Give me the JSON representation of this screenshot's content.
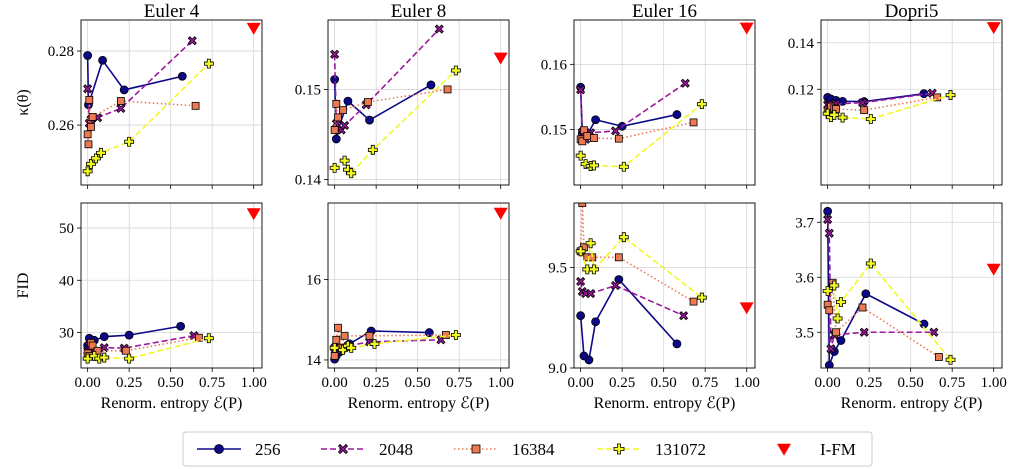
{
  "figure": {
    "columns": [
      "Euler 4",
      "Euler 8",
      "Euler 16",
      "Dopri5"
    ],
    "row_labels": [
      "κ(θ)",
      "FID"
    ],
    "xlabel": "Renorm. entropy ℰ(P)",
    "legend": [
      {
        "label": "256",
        "color": "#0d0887",
        "marker": "circle",
        "line": "solid"
      },
      {
        "label": "2048",
        "color": "#9c179e",
        "marker": "x",
        "line": "dashed"
      },
      {
        "label": "16384",
        "color": "#ed7953",
        "marker": "square",
        "line": "dotted"
      },
      {
        "label": "131072",
        "color": "#f0f921",
        "marker": "plus",
        "line": "dashed"
      },
      {
        "label": "I-FM",
        "color": "#ff0000",
        "marker": "triangle-down",
        "line": "none"
      }
    ]
  },
  "chart_data": [
    {
      "type": "line",
      "title": "Euler 4",
      "ylabel": "κ(θ)",
      "xlabel": "Renorm. entropy ℰ(P)",
      "xlim": [
        -0.04,
        1.05
      ],
      "ylim": [
        0.2438,
        0.2884
      ],
      "yticks": [
        0.26,
        0.28
      ],
      "xticks": [
        0.0,
        0.25,
        0.5,
        0.75,
        1.0
      ],
      "series": [
        {
          "name": "256",
          "x": [
            0.0,
            0.005,
            0.09,
            0.22,
            0.57
          ],
          "y": [
            0.2788,
            0.2655,
            0.2775,
            0.2695,
            0.2732
          ]
        },
        {
          "name": "2048",
          "x": [
            0.0,
            0.01,
            0.02,
            0.06,
            0.2,
            0.63
          ],
          "y": [
            0.2698,
            0.2605,
            0.2615,
            0.262,
            0.2645,
            0.2828
          ]
        },
        {
          "name": "16384",
          "x": [
            0.0,
            0.005,
            0.01,
            0.02,
            0.03,
            0.2,
            0.65
          ],
          "y": [
            0.2575,
            0.2548,
            0.2668,
            0.2595,
            0.2622,
            0.2665,
            0.2652
          ]
        },
        {
          "name": "131072",
          "x": [
            0.0,
            0.02,
            0.05,
            0.08,
            0.25,
            0.73
          ],
          "y": [
            0.2475,
            0.2495,
            0.251,
            0.2525,
            0.2555,
            0.2766
          ]
        },
        {
          "name": "I-FM",
          "x": [
            1.0
          ],
          "y": [
            0.2862
          ]
        }
      ]
    },
    {
      "type": "line",
      "title": "Euler 8",
      "ylabel": "",
      "xlabel": "Renorm. entropy ℰ(P)",
      "xlim": [
        -0.04,
        1.05
      ],
      "ylim": [
        0.1394,
        0.1577
      ],
      "yticks": [
        0.14,
        0.15
      ],
      "xticks": [
        0.0,
        0.25,
        0.5,
        0.75,
        1.0
      ],
      "series": [
        {
          "name": "256",
          "x": [
            0.0,
            0.01,
            0.02,
            0.08,
            0.21,
            0.58
          ],
          "y": [
            0.1511,
            0.1445,
            0.1455,
            0.1487,
            0.1466,
            0.1505
          ]
        },
        {
          "name": "2048",
          "x": [
            0.0,
            0.01,
            0.04,
            0.06,
            0.19,
            0.63
          ],
          "y": [
            0.1539,
            0.1462,
            0.1455,
            0.146,
            0.1483,
            0.1567
          ]
        },
        {
          "name": "16384",
          "x": [
            0.0,
            0.01,
            0.02,
            0.05,
            0.2,
            0.68
          ],
          "y": [
            0.1455,
            0.1484,
            0.1469,
            0.1477,
            0.1486,
            0.15
          ]
        },
        {
          "name": "131072",
          "x": [
            0.0,
            0.06,
            0.08,
            0.1,
            0.23,
            0.73
          ],
          "y": [
            0.1413,
            0.1421,
            0.1411,
            0.1407,
            0.1433,
            0.1521
          ]
        },
        {
          "name": "I-FM",
          "x": [
            1.0
          ],
          "y": [
            0.1535
          ]
        }
      ]
    },
    {
      "type": "line",
      "title": "Euler 16",
      "ylabel": "",
      "xlabel": "Renorm. entropy ℰ(P)",
      "xlim": [
        -0.04,
        1.05
      ],
      "ylim": [
        0.1415,
        0.1668
      ],
      "yticks": [
        0.15,
        0.16
      ],
      "xticks": [
        0.0,
        0.25,
        0.5,
        0.75,
        1.0
      ],
      "series": [
        {
          "name": "256",
          "x": [
            0.0,
            0.01,
            0.04,
            0.09,
            0.25,
            0.58
          ],
          "y": [
            0.1565,
            0.1495,
            0.1492,
            0.1515,
            0.1505,
            0.1523
          ]
        },
        {
          "name": "2048",
          "x": [
            0.0,
            0.01,
            0.03,
            0.06,
            0.21,
            0.63
          ],
          "y": [
            0.1561,
            0.1496,
            0.1485,
            0.1495,
            0.1498,
            0.1571
          ]
        },
        {
          "name": "16384",
          "x": [
            0.0,
            0.01,
            0.02,
            0.04,
            0.08,
            0.23,
            0.68
          ],
          "y": [
            0.1485,
            0.1482,
            0.1499,
            0.149,
            0.1487,
            0.1486,
            0.1511
          ]
        },
        {
          "name": "131072",
          "x": [
            0.0,
            0.03,
            0.06,
            0.08,
            0.26,
            0.73
          ],
          "y": [
            0.146,
            0.1447,
            0.1444,
            0.1445,
            0.1443,
            0.1539
          ]
        },
        {
          "name": "I-FM",
          "x": [
            1.0
          ],
          "y": [
            0.1656
          ]
        }
      ]
    },
    {
      "type": "line",
      "title": "Dopri5",
      "ylabel": "",
      "xlabel": "Renorm. entropy ℰ(P)",
      "xlim": [
        -0.04,
        1.05
      ],
      "ylim": [
        0.0788,
        0.1498
      ],
      "yticks": [
        0.12,
        0.14
      ],
      "xticks": [
        0.0,
        0.25,
        0.5,
        0.75,
        1.0
      ],
      "series": [
        {
          "name": "256",
          "x": [
            0.0,
            0.02,
            0.05,
            0.09,
            0.22,
            0.58
          ],
          "y": [
            0.1165,
            0.1158,
            0.1152,
            0.1148,
            0.1147,
            0.1181
          ]
        },
        {
          "name": "2048",
          "x": [
            0.0,
            0.01,
            0.03,
            0.05,
            0.21,
            0.63
          ],
          "y": [
            0.1133,
            0.1128,
            0.1135,
            0.1137,
            0.1142,
            0.1183
          ]
        },
        {
          "name": "16384",
          "x": [
            0.0,
            0.01,
            0.02,
            0.04,
            0.05,
            0.22,
            0.66
          ],
          "y": [
            0.1108,
            0.1102,
            0.1125,
            0.1118,
            0.1115,
            0.111,
            0.1165
          ]
        },
        {
          "name": "131072",
          "x": [
            0.0,
            0.02,
            0.04,
            0.09,
            0.26,
            0.74
          ],
          "y": [
            0.1095,
            0.108,
            0.109,
            0.1078,
            0.1072,
            0.1175
          ]
        },
        {
          "name": "I-FM",
          "x": [
            1.0
          ],
          "y": [
            0.1466
          ]
        }
      ]
    },
    {
      "type": "line",
      "title": "",
      "ylabel": "FID",
      "xlabel": "Renorm. entropy ℰ(P)",
      "xlim": [
        -0.04,
        1.05
      ],
      "ylim": [
        23.2,
        54.8
      ],
      "yticks": [
        30,
        40,
        50
      ],
      "xticks": [
        0.0,
        0.25,
        0.5,
        0.75,
        1.0
      ],
      "series": [
        {
          "name": "256",
          "x": [
            0.0,
            0.01,
            0.04,
            0.1,
            0.25,
            0.56
          ],
          "y": [
            27.5,
            28.9,
            28.5,
            29.2,
            29.5,
            31.2
          ]
        },
        {
          "name": "2048",
          "x": [
            0.0,
            0.01,
            0.02,
            0.1,
            0.22,
            0.64
          ],
          "y": [
            26.5,
            27.4,
            26.6,
            27.1,
            27.0,
            29.4
          ]
        },
        {
          "name": "16384",
          "x": [
            0.0,
            0.01,
            0.02,
            0.03,
            0.06,
            0.23,
            0.67
          ],
          "y": [
            26.0,
            25.5,
            28.0,
            27.5,
            26.5,
            26.5,
            29.0
          ]
        },
        {
          "name": "131072",
          "x": [
            0.0,
            0.04,
            0.07,
            0.1,
            0.25,
            0.73
          ],
          "y": [
            25.0,
            25.5,
            25.0,
            25.2,
            25.0,
            28.9
          ]
        },
        {
          "name": "I-FM",
          "x": [
            1.0
          ],
          "y": [
            52.8
          ]
        }
      ]
    },
    {
      "type": "line",
      "title": "",
      "ylabel": "",
      "xlabel": "Renorm. entropy ℰ(P)",
      "xlim": [
        -0.04,
        1.05
      ],
      "ylim": [
        13.8,
        17.9
      ],
      "yticks": [
        14,
        16
      ],
      "xticks": [
        0.0,
        0.25,
        0.5,
        0.75,
        1.0
      ],
      "series": [
        {
          "name": "256",
          "x": [
            0.0,
            0.01,
            0.03,
            0.09,
            0.22,
            0.57
          ],
          "y": [
            14.02,
            14.1,
            14.2,
            14.4,
            14.72,
            14.68
          ]
        },
        {
          "name": "2048",
          "x": [
            0.0,
            0.01,
            0.04,
            0.08,
            0.21,
            0.64
          ],
          "y": [
            14.3,
            14.2,
            14.25,
            14.35,
            14.45,
            14.5
          ]
        },
        {
          "name": "16384",
          "x": [
            0.0,
            0.01,
            0.02,
            0.04,
            0.06,
            0.21,
            0.67
          ],
          "y": [
            14.1,
            14.5,
            14.8,
            14.3,
            14.6,
            14.6,
            14.62
          ]
        },
        {
          "name": "131072",
          "x": [
            0.0,
            0.05,
            0.08,
            0.1,
            0.24,
            0.73
          ],
          "y": [
            14.3,
            14.25,
            14.35,
            14.3,
            14.4,
            14.62
          ]
        },
        {
          "name": "I-FM",
          "x": [
            1.0
          ],
          "y": [
            17.65
          ]
        }
      ]
    },
    {
      "type": "line",
      "title": "",
      "ylabel": "",
      "xlabel": "Renorm. entropy ℰ(P)",
      "xlim": [
        -0.04,
        1.05
      ],
      "ylim": [
        9.0,
        9.82
      ],
      "yticks": [
        9.0,
        9.5
      ],
      "xticks": [
        0.0,
        0.25,
        0.5,
        0.75,
        1.0
      ],
      "series": [
        {
          "name": "256",
          "x": [
            0.0,
            0.02,
            0.05,
            0.09,
            0.23,
            0.58
          ],
          "y": [
            9.26,
            9.06,
            9.04,
            9.23,
            9.44,
            9.12
          ]
        },
        {
          "name": "2048",
          "x": [
            0.0,
            0.01,
            0.03,
            0.06,
            0.21,
            0.62
          ],
          "y": [
            9.43,
            9.38,
            9.37,
            9.37,
            9.41,
            9.26
          ]
        },
        {
          "name": "16384",
          "x": [
            0.0,
            0.01,
            0.02,
            0.04,
            0.07,
            0.23,
            0.68
          ],
          "y": [
            9.58,
            9.82,
            9.6,
            9.55,
            9.55,
            9.55,
            9.33
          ]
        },
        {
          "name": "131072",
          "x": [
            0.0,
            0.04,
            0.06,
            0.08,
            0.26,
            0.73
          ],
          "y": [
            9.58,
            9.49,
            9.62,
            9.49,
            9.65,
            9.35
          ]
        },
        {
          "name": "I-FM",
          "x": [
            1.0
          ],
          "y": [
            9.3
          ]
        }
      ]
    },
    {
      "type": "line",
      "title": "",
      "ylabel": "",
      "xlabel": "Renorm. entropy ℰ(P)",
      "xlim": [
        -0.04,
        1.05
      ],
      "ylim": [
        3.435,
        3.735
      ],
      "yticks": [
        3.5,
        3.6,
        3.7
      ],
      "xticks": [
        0.0,
        0.25,
        0.5,
        0.75,
        1.0
      ],
      "series": [
        {
          "name": "256",
          "x": [
            0.0,
            0.01,
            0.04,
            0.08,
            0.23,
            0.58
          ],
          "y": [
            3.72,
            3.44,
            3.465,
            3.485,
            3.57,
            3.515
          ]
        },
        {
          "name": "2048",
          "x": [
            0.0,
            0.01,
            0.02,
            0.04,
            0.22,
            0.64
          ],
          "y": [
            3.705,
            3.68,
            3.47,
            3.495,
            3.5,
            3.5
          ]
        },
        {
          "name": "16384",
          "x": [
            0.0,
            0.01,
            0.03,
            0.05,
            0.21,
            0.67
          ],
          "y": [
            3.55,
            3.54,
            3.59,
            3.5,
            3.545,
            3.455
          ]
        },
        {
          "name": "131072",
          "x": [
            0.0,
            0.04,
            0.06,
            0.08,
            0.26,
            0.74
          ],
          "y": [
            3.575,
            3.585,
            3.525,
            3.555,
            3.625,
            3.45
          ]
        },
        {
          "name": "I-FM",
          "x": [
            1.0
          ],
          "y": [
            3.615
          ]
        }
      ]
    }
  ]
}
